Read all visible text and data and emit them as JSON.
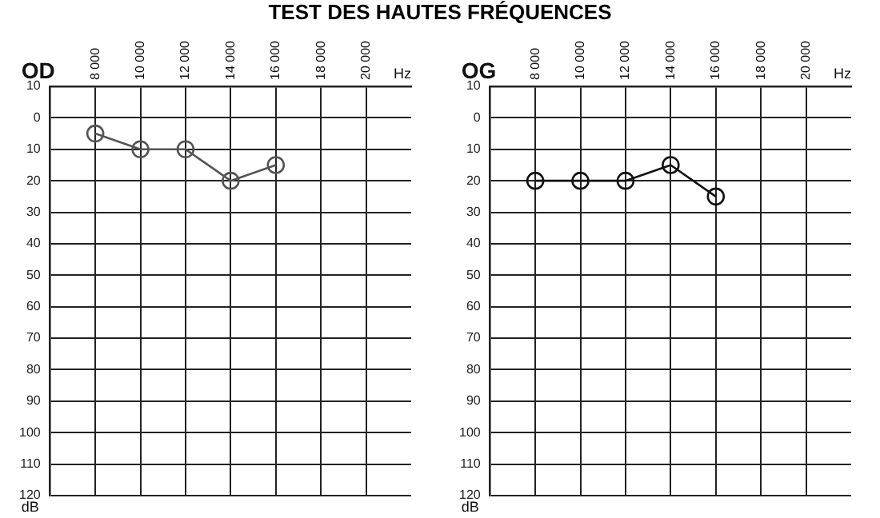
{
  "chart_data": [
    {
      "type": "line",
      "title": "TEST DES HAUTES FRÉQUENCES",
      "annotations": [
        "OD"
      ],
      "xlabel": "Hz",
      "ylabel": "dB",
      "x": [
        8000,
        10000,
        12000,
        14000,
        16000
      ],
      "values": [
        5,
        10,
        10,
        20,
        15
      ],
      "color": "#555555",
      "marker": "circle",
      "line_style": "solid",
      "grid": true,
      "legend": false,
      "xlim": [
        6000,
        22000
      ],
      "xticks": [
        {
          "value": 8000,
          "label": "8 000"
        },
        {
          "value": 10000,
          "label": "10 000"
        },
        {
          "value": 12000,
          "label": "12 000"
        },
        {
          "value": 14000,
          "label": "14 000"
        },
        {
          "value": 16000,
          "label": "16 000"
        },
        {
          "value": 18000,
          "label": "18 000"
        },
        {
          "value": 20000,
          "label": "20 000"
        }
      ],
      "ylim": [
        120,
        -10
      ],
      "yticks": [
        {
          "value": -10,
          "label": "10"
        },
        0,
        10,
        20,
        30,
        40,
        50,
        60,
        70,
        80,
        90,
        100,
        110,
        120
      ]
    },
    {
      "type": "line",
      "annotations": [
        "OG"
      ],
      "xlabel": "Hz",
      "ylabel": "dB",
      "x": [
        8000,
        10000,
        12000,
        14000,
        16000
      ],
      "values": [
        20,
        20,
        20,
        15,
        25
      ],
      "color": "#111111",
      "marker": "circle",
      "line_style": "solid",
      "grid": true,
      "legend": false,
      "xlim": [
        6000,
        22000
      ],
      "xticks": [
        {
          "value": 8000,
          "label": "8 000"
        },
        {
          "value": 10000,
          "label": "10 000"
        },
        {
          "value": 12000,
          "label": "12 000"
        },
        {
          "value": 14000,
          "label": "14 000"
        },
        {
          "value": 16000,
          "label": "16 000"
        },
        {
          "value": 18000,
          "label": "18 000"
        },
        {
          "value": 20000,
          "label": "20 000"
        }
      ],
      "ylim": [
        120,
        -10
      ],
      "yticks": [
        {
          "value": -10,
          "label": "10"
        },
        0,
        10,
        20,
        30,
        40,
        50,
        60,
        70,
        80,
        90,
        100,
        110,
        120
      ]
    }
  ]
}
